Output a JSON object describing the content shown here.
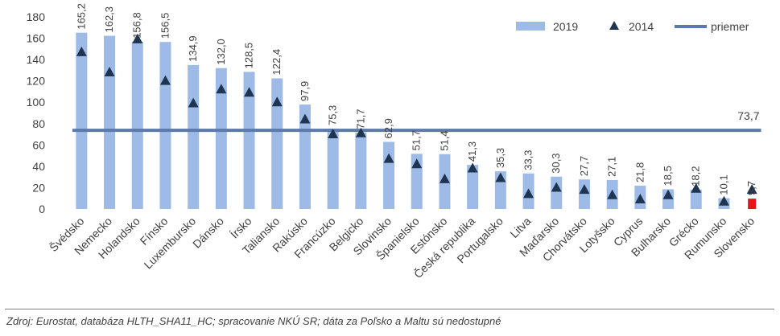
{
  "chart_data": {
    "type": "bar",
    "categories": [
      "Švédsko",
      "Nemecko",
      "Holandsko",
      "Fínsko",
      "Luxembursko",
      "Dánsko",
      "Írsko",
      "Taliansko",
      "Rakúsko",
      "Francúzko",
      "Belgicko",
      "Slovinsko",
      "Španielsko",
      "Estónsko",
      "Česká republika",
      "Portugalsko",
      "Litva",
      "Maďarsko",
      "Chorvátsko",
      "Lotyšsko",
      "Cyprus",
      "Bulharsko",
      "Grécko",
      "Rumunsko",
      "Slovensko"
    ],
    "series": [
      {
        "name": "2019",
        "kind": "bar",
        "color": "#9dbbe6",
        "values": [
          165.2,
          162.3,
          156.8,
          156.5,
          134.9,
          132.0,
          128.5,
          122.4,
          97.9,
          75.3,
          71.7,
          62.9,
          51.7,
          51.4,
          41.3,
          35.3,
          33.3,
          30.3,
          27.7,
          27.1,
          21.8,
          18.5,
          18.2,
          10.1,
          9.7
        ],
        "labels": [
          "165,2",
          "162,3",
          "156,8",
          "156,5",
          "134,9",
          "132,0",
          "128,5",
          "122,4",
          "97,9",
          "75,3",
          "71,7",
          "62,9",
          "51,7",
          "51,4",
          "41,3",
          "35,3",
          "33,3",
          "30,3",
          "27,7",
          "27,1",
          "21,8",
          "18,5",
          "18,2",
          "10,1",
          "9,7"
        ],
        "highlight_color": "#e8141c"
      },
      {
        "name": "2014",
        "kind": "marker",
        "color": "#1f3450",
        "values": [
          147,
          128,
          159,
          120,
          99,
          112,
          109,
          100,
          84,
          70,
          71,
          47,
          42,
          28,
          38,
          29,
          14,
          20,
          18,
          13,
          9,
          13,
          19,
          7,
          18
        ]
      },
      {
        "name": "priemer",
        "kind": "line",
        "color": "#5b79aa",
        "value": 73.7,
        "label": "73,7"
      }
    ],
    "ylim": [
      0,
      180
    ],
    "yticks": [
      0,
      20,
      40,
      60,
      80,
      100,
      120,
      140,
      160,
      180
    ],
    "grid": false,
    "legend": "top-right"
  },
  "source_note": "Zdroj: Eurostat, databáza HLTH_SHA11_HC; spracovanie NKÚ SR; dáta za Poľsko a Maltu sú nedostupné"
}
